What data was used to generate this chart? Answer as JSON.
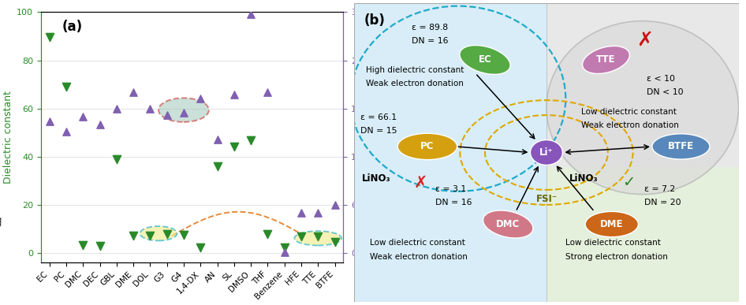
{
  "categories": [
    "EC",
    "PC",
    "DMC",
    "DEC",
    "GBL",
    "DME",
    "DOL",
    "G3",
    "G4",
    "1,4-DX",
    "AN",
    "SL",
    "DMSO",
    "THF",
    "Benzene",
    "HFE",
    "TTE",
    "BTFE"
  ],
  "dielectric": [
    89.8,
    69.0,
    3.1,
    2.8,
    39.0,
    7.2,
    7.1,
    7.9,
    7.5,
    2.2,
    36.0,
    44.0,
    46.7,
    7.6,
    2.3,
    6.8,
    6.9,
    4.5
  ],
  "donor_number": [
    16.4,
    15.1,
    17.0,
    16.0,
    18.0,
    20.0,
    18.0,
    17.2,
    17.5,
    19.2,
    14.1,
    19.7,
    29.8,
    20.0,
    0.1,
    5.0,
    5.0,
    6.0
  ],
  "dc_color": "#2a8a2a",
  "dn_color": "#8060b0",
  "panel_b_left_bg": "#ddeef8",
  "panel_b_right_top_bg": "#ebebeb",
  "panel_b_right_bot_bg": "#e8f2e0"
}
